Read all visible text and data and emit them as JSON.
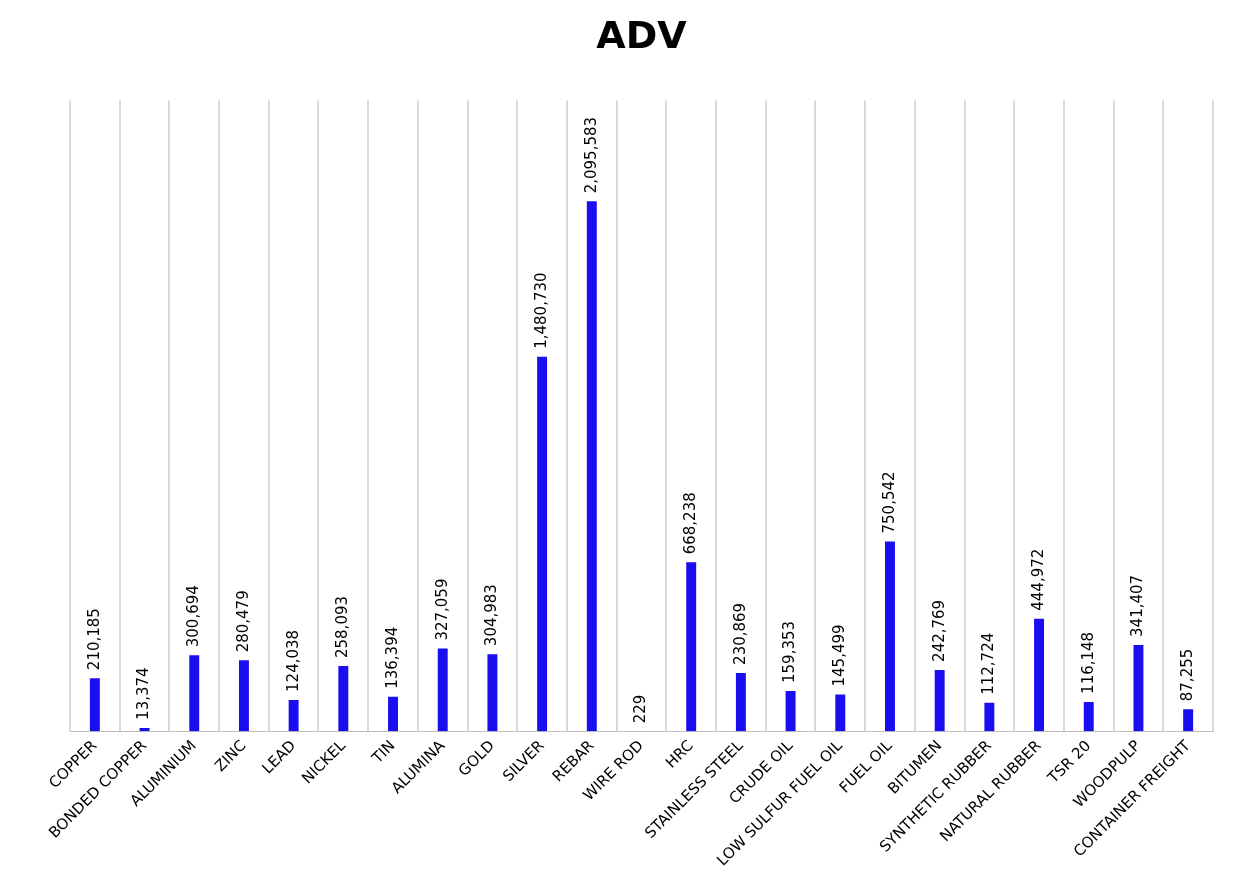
{
  "chart_data": {
    "type": "bar",
    "title": "ADV",
    "categories": [
      "COPPER",
      "BONDED COPPER",
      "ALUMINIUM",
      "ZINC",
      "LEAD",
      "NICKEL",
      "TIN",
      "ALUMINA",
      "GOLD",
      "SILVER",
      "REBAR",
      "WIRE ROD",
      "HRC",
      "STAINLESS STEEL",
      "CRUDE OIL",
      "LOW SULFUR FUEL OIL",
      "FUEL OIL",
      "BITUMEN",
      "SYNTHETIC RUBBER",
      "NATURAL RUBBER",
      "TSR 20",
      "WOODPULP",
      "CONTAINER FREIGHT"
    ],
    "values": [
      210185,
      13374,
      300694,
      280479,
      124038,
      258093,
      136394,
      327059,
      304983,
      1480730,
      2095583,
      229,
      668238,
      230869,
      159353,
      145499,
      750542,
      242769,
      112724,
      444972,
      116148,
      341407,
      87255
    ],
    "value_labels": [
      "210,185",
      "13,374",
      "300,694",
      "280,479",
      "124,038",
      "258,093",
      "136,394",
      "327,059",
      "304,983",
      "1,480,730",
      "2,095,583",
      "229",
      "668,238",
      "230,869",
      "159,353",
      "145,499",
      "750,542",
      "242,769",
      "112,724",
      "444,972",
      "116,148",
      "341,407",
      "87,255"
    ],
    "color": "#1a0df0",
    "grid": "x",
    "legend": false,
    "tick_labels": "x"
  }
}
